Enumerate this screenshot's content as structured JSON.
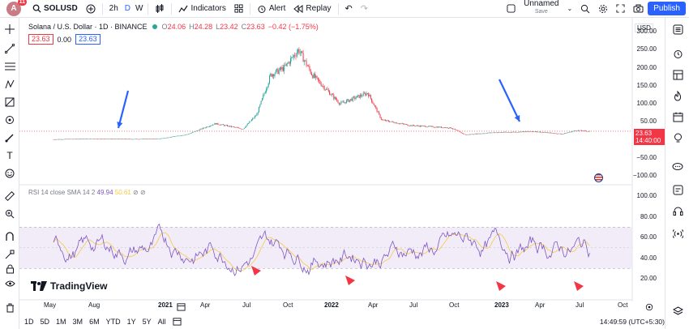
{
  "topbar": {
    "avatar_letter": "A",
    "avatar_badge": "11",
    "symbol": "SOLUSD",
    "interval": "2h",
    "interval_d": "D",
    "interval_w": "W",
    "indicators_label": "Indicators",
    "alert_label": "Alert",
    "replay_label": "Replay",
    "layout_name": "Unnamed",
    "layout_save": "Save",
    "publish_label": "Publish"
  },
  "legend": {
    "title": "Solana / U.S. Dollar · 1D · BINANCE",
    "o_label": "O",
    "o_val": "24.06",
    "h_label": "H",
    "h_val": "24.28",
    "l_label": "L",
    "l_val": "23.42",
    "c_label": "C",
    "c_val": "23.63",
    "change": "−0.42 (−1.75%)",
    "box_bid": "23.63",
    "box_spread": "0.00",
    "box_ask": "23.63"
  },
  "rsi_legend": {
    "label": "RSI 14 close SMA 14 2",
    "value1": "49.94",
    "value2": "50.61",
    "extra": "⊘ ⊘"
  },
  "price_axis": {
    "currency": "USD",
    "ticks": [
      "300.00",
      "250.00",
      "200.00",
      "150.00",
      "100.00",
      "50.00",
      "−50.00",
      "−100.00"
    ],
    "last_price": "23.63",
    "countdown": "14:40:00"
  },
  "rsi_axis": {
    "ticks": [
      "100.00",
      "80.00",
      "60.00",
      "40.00",
      "20.00"
    ]
  },
  "time_axis": {
    "labels": [
      "May",
      "Aug",
      "2021",
      "Apr",
      "Jul",
      "Oct",
      "2022",
      "Apr",
      "Jul",
      "Oct",
      "2023",
      "Apr",
      "Jul",
      "Oct"
    ]
  },
  "bottom": {
    "ranges": [
      "1D",
      "5D",
      "1M",
      "3M",
      "6M",
      "YTD",
      "1Y",
      "5Y",
      "All"
    ],
    "clock": "14:49:59 (UTC+5:30)"
  },
  "branding": {
    "logo_text": "TradingView"
  },
  "colors": {
    "up": "#26a69a",
    "down": "#f23645",
    "rsi_line": "#7e57c2",
    "rsi_sma": "#f7c948",
    "rsi_band": "#ede7f6",
    "accent": "#2962ff",
    "annotation_arrow_blue": "#2962ff",
    "annotation_arrow_red": "#f23645"
  },
  "chart_data": {
    "type": "line",
    "title": "Solana / U.S. Dollar · 1D · BINANCE",
    "series": [
      {
        "name": "SOLUSD close",
        "x": [
          "2020-05",
          "2020-08",
          "2020-11",
          "2021-01",
          "2021-03",
          "2021-05",
          "2021-07",
          "2021-08",
          "2021-09",
          "2021-10",
          "2021-11",
          "2021-12",
          "2022-02",
          "2022-04",
          "2022-05",
          "2022-07",
          "2022-10",
          "2022-11",
          "2023-01",
          "2023-04",
          "2023-06",
          "2023-07",
          "2023-08"
        ],
        "values": [
          1,
          3,
          2,
          3,
          15,
          45,
          30,
          70,
          180,
          200,
          250,
          180,
          100,
          130,
          55,
          40,
          33,
          14,
          20,
          23,
          16,
          26,
          23.63
        ]
      }
    ],
    "ylim": [
      -100,
      300
    ],
    "rsi": {
      "name": "RSI 14",
      "overbought": 70,
      "oversold": 30,
      "ylim": [
        0,
        100
      ],
      "last": 49.94,
      "sma_last": 50.61
    }
  }
}
